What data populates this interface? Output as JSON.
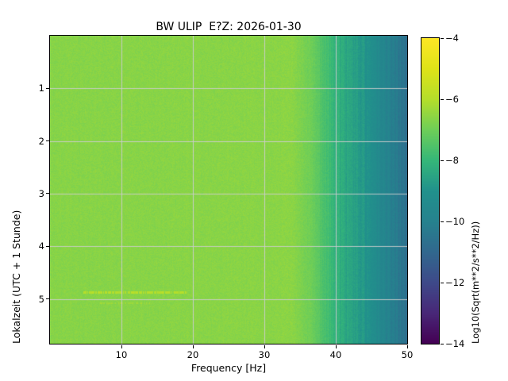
{
  "figure": {
    "background_color": "#ffffff",
    "text_color": "#000000"
  },
  "chart_data": {
    "type": "heatmap",
    "title": "BW ULIP  E?Z: 2026-01-30",
    "xlabel": "Frequency [Hz]",
    "ylabel": "Lokalzeit (UTC + 1 Stunde)",
    "x_range": [
      0,
      50
    ],
    "x_ticks": [
      10,
      20,
      30,
      40,
      50
    ],
    "x_tick_labels": [
      "10",
      "20",
      "30",
      "40",
      "50"
    ],
    "y_range": [
      0,
      5.85
    ],
    "y_ticks": [
      1,
      2,
      3,
      4,
      5
    ],
    "y_tick_labels": [
      "1",
      "2",
      "3",
      "4",
      "5"
    ],
    "grid": true,
    "grid_color": "#cdcdcd",
    "colormap": "viridis",
    "colorbar": {
      "label": "Log10(Sqrt(m**2/s**2/Hz))",
      "range": [
        -14,
        -4
      ],
      "ticks": [
        -4,
        -6,
        -8,
        -10,
        -12,
        -14
      ],
      "tick_labels": [
        "−4",
        "−6",
        "−8",
        "−10",
        "−12",
        "−14"
      ]
    },
    "spectrum_profile": [
      {
        "hz": 0.0,
        "value": -6.65
      },
      {
        "hz": 34.0,
        "value": -6.6
      },
      {
        "hz": 37.0,
        "value": -7.1
      },
      {
        "hz": 40.0,
        "value": -8.1
      },
      {
        "hz": 44.0,
        "value": -8.9
      },
      {
        "hz": 47.0,
        "value": -9.8
      },
      {
        "hz": 50.0,
        "value": -10.7
      }
    ],
    "noise_amplitude": 0.16,
    "streak_amplitude": 0.42,
    "events": [
      {
        "time_hours": 4.87,
        "hz_start": 4.5,
        "hz_end": 19.0,
        "value": -5.95,
        "style": "dashed"
      },
      {
        "time_hours": 5.08,
        "hz_start": 7.0,
        "hz_end": 14.5,
        "value": -6.3,
        "style": "dotted"
      }
    ],
    "colors": {
      "background_green": "#84d446",
      "transition_teal": "#21918c",
      "edge_blue": "#31688e",
      "event_yellow": "#b5de2b",
      "cb_top_yellow": "#fde725",
      "cb_bottom_purple": "#440154"
    }
  }
}
